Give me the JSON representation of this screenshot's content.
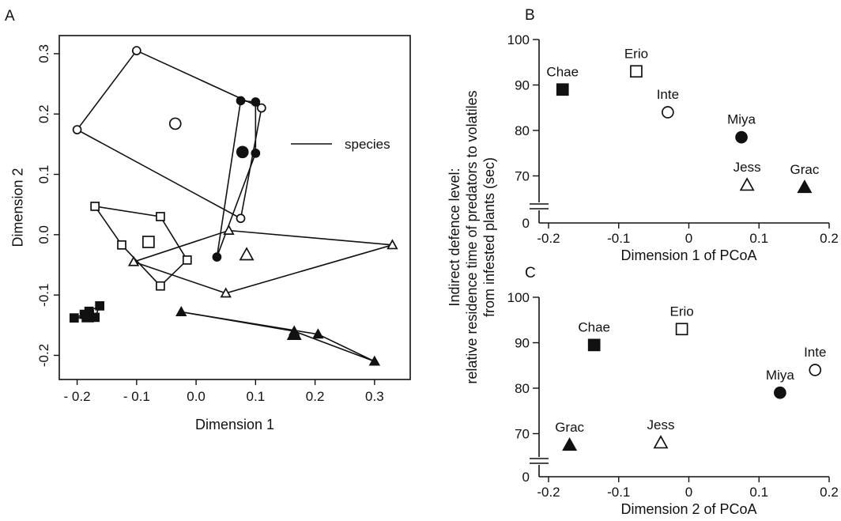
{
  "chart_data": [
    {
      "panel": "A",
      "type": "scatter",
      "xlabel": "Dimension 1",
      "ylabel": "Dimension 2",
      "xlim": [
        -0.23,
        0.36
      ],
      "ylim": [
        -0.24,
        0.33
      ],
      "xticks": [
        -0.2,
        -0.1,
        0.0,
        0.1,
        0.2,
        0.3
      ],
      "xtick_labels": [
        "- 0.2",
        "- 0.1",
        "0.0",
        "0.1",
        "0.2",
        "0.3"
      ],
      "yticks": [
        -0.2,
        -0.1,
        0.0,
        0.1,
        0.2,
        0.3
      ],
      "ytick_labels": [
        "-0.2",
        "-0.1",
        "0.0",
        "0.1",
        "0.2",
        "0.3"
      ],
      "legend": {
        "label": "species",
        "position": "right"
      },
      "groups": [
        {
          "marker": "circle-open",
          "points": [
            [
              -0.1,
              0.305
            ],
            [
              0.11,
              0.21
            ],
            [
              0.075,
              0.027
            ],
            [
              -0.2,
              0.174
            ]
          ],
          "centroid": [
            -0.035,
            0.184
          ]
        },
        {
          "marker": "circle-filled",
          "points": [
            [
              0.075,
              0.222
            ],
            [
              0.1,
              0.22
            ],
            [
              0.1,
              0.135
            ],
            [
              0.035,
              -0.037
            ],
            [
              0.078,
              0.137
            ]
          ],
          "hull": [
            [
              0.075,
              0.222
            ],
            [
              0.1,
              0.22
            ],
            [
              0.1,
              0.135
            ],
            [
              0.035,
              -0.037
            ]
          ],
          "centroid": [
            0.078,
            0.137
          ]
        },
        {
          "marker": "square-open",
          "points": [
            [
              -0.17,
              0.047
            ],
            [
              -0.06,
              0.03
            ],
            [
              -0.015,
              -0.042
            ],
            [
              -0.06,
              -0.085
            ],
            [
              -0.125,
              -0.017
            ]
          ],
          "centroid": [
            -0.08,
            -0.012
          ]
        },
        {
          "marker": "triangle-open",
          "points": [
            [
              0.055,
              0.007
            ],
            [
              0.33,
              -0.017
            ],
            [
              0.05,
              -0.097
            ],
            [
              -0.105,
              -0.045
            ]
          ],
          "centroid": [
            0.085,
            -0.033
          ]
        },
        {
          "marker": "square-filled",
          "points": [
            [
              -0.205,
              -0.138
            ],
            [
              -0.188,
              -0.132
            ],
            [
              -0.18,
              -0.127
            ],
            [
              -0.162,
              -0.118
            ],
            [
              -0.17,
              -0.137
            ],
            [
              -0.182,
              -0.135
            ]
          ],
          "hull": [
            [
              -0.205,
              -0.138
            ],
            [
              -0.188,
              -0.132
            ],
            [
              -0.18,
              -0.127
            ],
            [
              -0.162,
              -0.118
            ],
            [
              -0.17,
              -0.137
            ]
          ],
          "centroid": [
            -0.182,
            -0.135
          ]
        },
        {
          "marker": "triangle-filled",
          "points": [
            [
              -0.025,
              -0.128
            ],
            [
              0.165,
              -0.16
            ],
            [
              0.3,
              -0.21
            ],
            [
              0.205,
              -0.165
            ],
            [
              0.165,
              -0.165
            ]
          ],
          "hull": [
            [
              -0.025,
              -0.128
            ],
            [
              0.165,
              -0.16
            ],
            [
              0.3,
              -0.21
            ],
            [
              0.205,
              -0.165
            ]
          ],
          "centroid": [
            0.165,
            -0.165
          ]
        }
      ]
    },
    {
      "panel": "B",
      "type": "scatter",
      "xlabel": "Dimension 1 of PCoA",
      "ylabel": [
        "Indirect defence level:",
        "relative residence time of predators to volatiles",
        "from infested plants (sec)"
      ],
      "xlim": [
        -0.2,
        0.2
      ],
      "ylim": [
        60,
        100
      ],
      "xticks": [
        -0.2,
        -0.1,
        0,
        0.1,
        0.2
      ],
      "xtick_labels": [
        "-0.2",
        "-0.1",
        "0",
        "0.1",
        "0.2"
      ],
      "yticks": [
        70,
        80,
        90,
        100
      ],
      "ytick_labels": [
        "70",
        "80",
        "90",
        "100"
      ],
      "y_zero_label": "0",
      "points": [
        {
          "label": "Chae",
          "marker": "square-filled",
          "x": -0.18,
          "y": 89
        },
        {
          "label": "Erio",
          "marker": "square-open",
          "x": -0.075,
          "y": 93
        },
        {
          "label": "Inte",
          "marker": "circle-open",
          "x": -0.03,
          "y": 84
        },
        {
          "label": "Miya",
          "marker": "circle-filled",
          "x": 0.075,
          "y": 78.5
        },
        {
          "label": "Jess",
          "marker": "triangle-open",
          "x": 0.083,
          "y": 68
        },
        {
          "label": "Grac",
          "marker": "triangle-filled",
          "x": 0.165,
          "y": 67.5
        }
      ]
    },
    {
      "panel": "C",
      "type": "scatter",
      "xlabel": "Dimension 2 of PCoA",
      "xlim": [
        -0.2,
        0.2
      ],
      "ylim": [
        60,
        100
      ],
      "xticks": [
        -0.2,
        -0.1,
        0,
        0.1,
        0.2
      ],
      "xtick_labels": [
        "-0.2",
        "-0.1",
        "0",
        "0.1",
        "0.2"
      ],
      "yticks": [
        70,
        80,
        90,
        100
      ],
      "ytick_labels": [
        "70",
        "80",
        "90",
        "100"
      ],
      "y_zero_label": "0",
      "points": [
        {
          "label": "Chae",
          "marker": "square-filled",
          "x": -0.135,
          "y": 89.5
        },
        {
          "label": "Erio",
          "marker": "square-open",
          "x": -0.01,
          "y": 93
        },
        {
          "label": "Inte",
          "marker": "circle-open",
          "x": 0.18,
          "y": 84
        },
        {
          "label": "Miya",
          "marker": "circle-filled",
          "x": 0.13,
          "y": 79
        },
        {
          "label": "Jess",
          "marker": "triangle-open",
          "x": -0.04,
          "y": 68
        },
        {
          "label": "Grac",
          "marker": "triangle-filled",
          "x": -0.17,
          "y": 67.5
        }
      ]
    }
  ]
}
